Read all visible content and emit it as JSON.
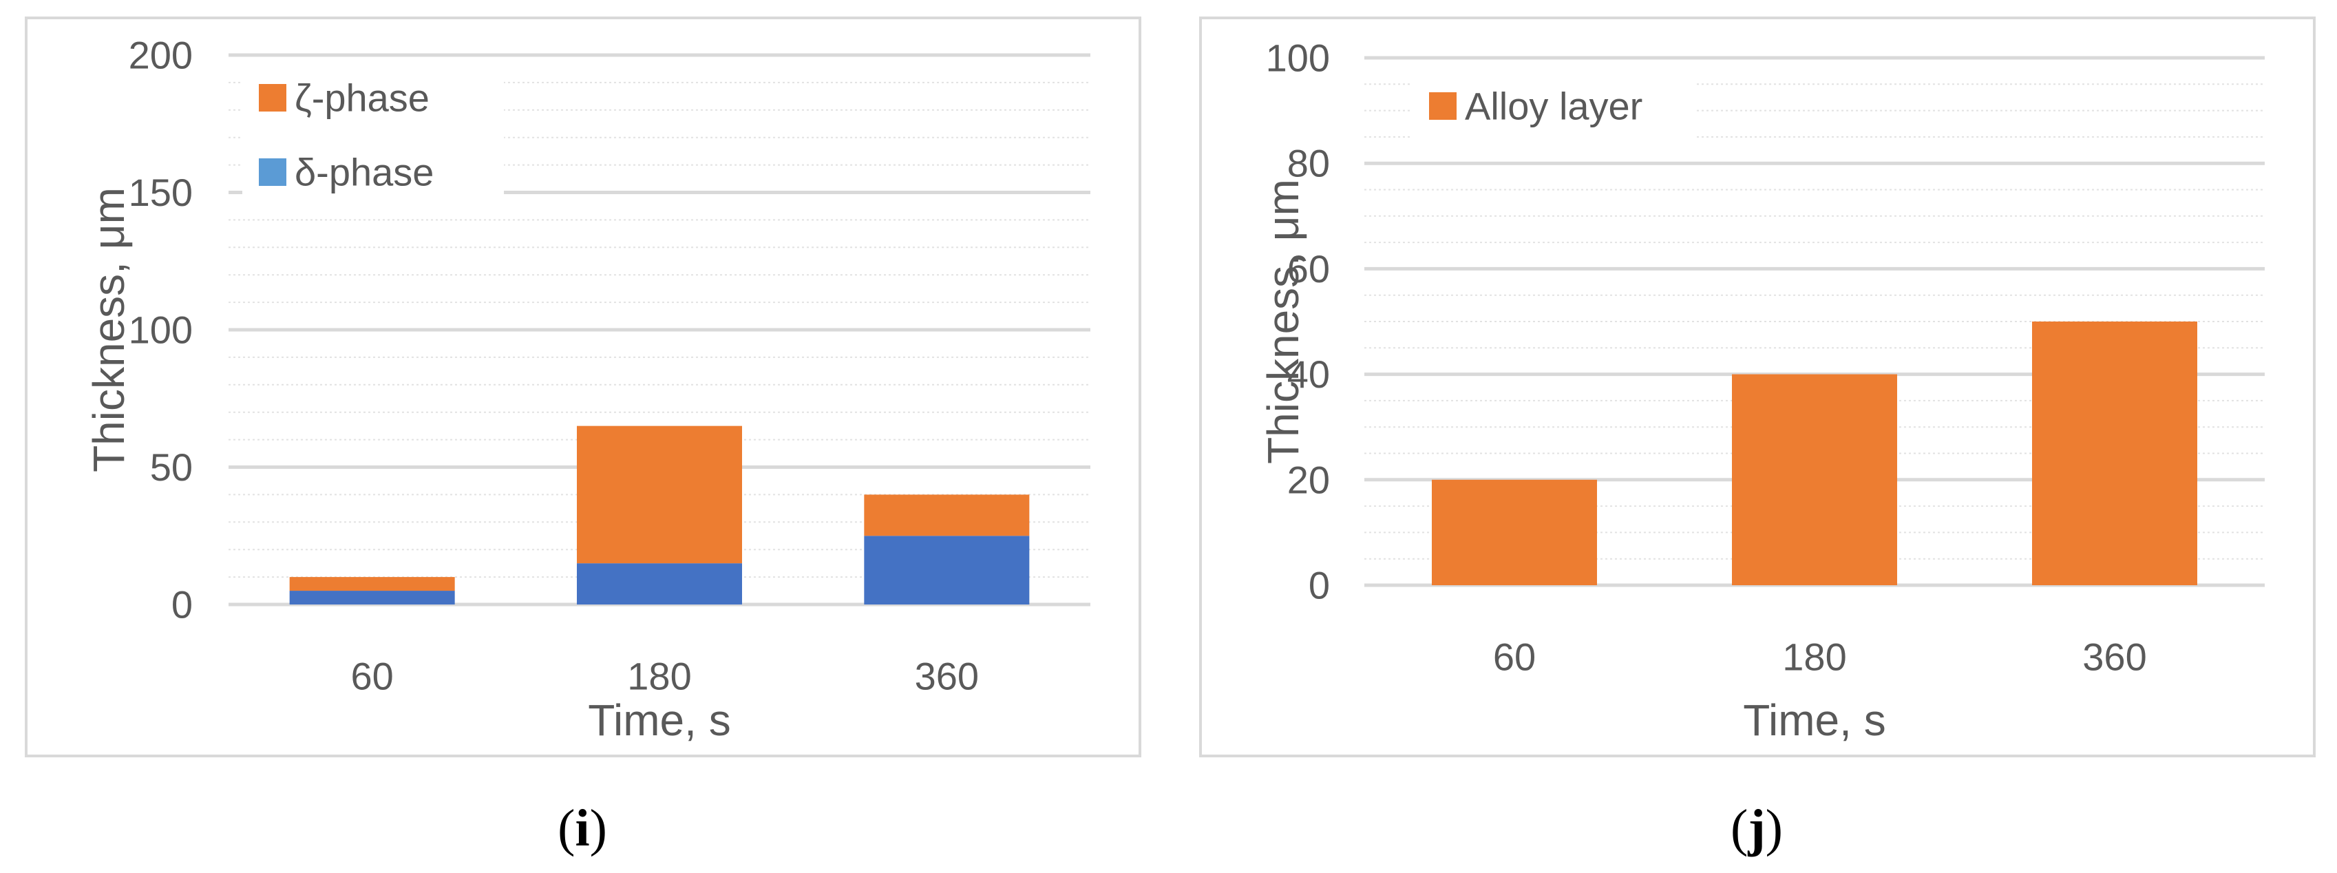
{
  "chart_data": [
    {
      "type": "bar",
      "stacked": true,
      "panel_label": "i",
      "categories": [
        "60",
        "180",
        "360"
      ],
      "series": [
        {
          "name": "δ-phase",
          "values": [
            5,
            15,
            25
          ],
          "color": "#4472c4"
        },
        {
          "name": "ζ-phase",
          "values": [
            5,
            50,
            15
          ],
          "color": "#ed7d31"
        }
      ],
      "legend": [
        {
          "name": "ζ-phase",
          "color": "#ed7d31"
        },
        {
          "name": "δ-phase",
          "color": "#5b9bd5"
        }
      ],
      "legend_position": "top-left",
      "title": "",
      "xlabel": "Time, s",
      "ylabel": "Thickness, μm",
      "ylim": [
        0,
        200
      ],
      "yticks": [
        0,
        50,
        100,
        150,
        200
      ],
      "grid": true
    },
    {
      "type": "bar",
      "stacked": false,
      "panel_label": "j",
      "categories": [
        "60",
        "180",
        "360"
      ],
      "series": [
        {
          "name": "Alloy layer",
          "values": [
            20,
            40,
            50
          ],
          "color": "#ed7d31"
        }
      ],
      "legend": [
        {
          "name": "Alloy layer",
          "color": "#ed7d31"
        }
      ],
      "legend_position": "top-left",
      "title": "",
      "xlabel": "Time, s",
      "ylabel": "Thickness, μm",
      "ylim": [
        0,
        100
      ],
      "yticks": [
        0,
        20,
        40,
        60,
        80,
        100
      ],
      "grid": true
    }
  ],
  "captions": {
    "i": {
      "open": "(",
      "letter": "i",
      "close": ")"
    },
    "j": {
      "open": "(",
      "letter": "j",
      "close": ")"
    }
  }
}
